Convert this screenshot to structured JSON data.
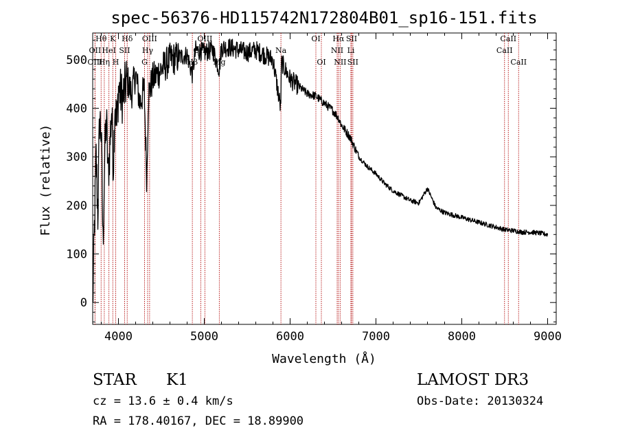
{
  "chart_data": {
    "type": "line",
    "title": "spec-56376-HD115742N172804B01_sp16-151.fits",
    "xlabel": "Wavelength (Å)",
    "ylabel": "Flux (relative)",
    "xlim": [
      3700,
      9100
    ],
    "ylim": [
      -45,
      555
    ],
    "x_ticks": [
      4000,
      5000,
      6000,
      7000,
      8000,
      9000
    ],
    "y_ticks": [
      0,
      100,
      200,
      300,
      400,
      500
    ],
    "colors": {
      "line": "#000000",
      "markers": "#b00000",
      "axes": "#000000"
    },
    "series": [
      {
        "name": "flux",
        "x": [
          3700,
          3720,
          3740,
          3760,
          3780,
          3800,
          3820,
          3840,
          3860,
          3880,
          3900,
          3920,
          3940,
          3960,
          3980,
          4000,
          4050,
          4100,
          4150,
          4200,
          4250,
          4300,
          4330,
          4350,
          4400,
          4450,
          4500,
          4550,
          4600,
          4700,
          4800,
          4860,
          4900,
          5000,
          5100,
          5175,
          5200,
          5300,
          5400,
          5500,
          5600,
          5700,
          5800,
          5890,
          5900,
          6000,
          6100,
          6200,
          6300,
          6400,
          6500,
          6563,
          6600,
          6700,
          6800,
          6900,
          7000,
          7100,
          7200,
          7300,
          7400,
          7500,
          7600,
          7700,
          7800,
          7900,
          8000,
          8100,
          8200,
          8300,
          8400,
          8500,
          8600,
          8700,
          8800,
          8900,
          9000
        ],
        "values": [
          -10,
          150,
          300,
          180,
          380,
          350,
          120,
          300,
          380,
          260,
          320,
          400,
          280,
          420,
          360,
          440,
          420,
          460,
          430,
          470,
          410,
          440,
          250,
          430,
          460,
          470,
          480,
          490,
          500,
          505,
          510,
          470,
          520,
          515,
          520,
          480,
          525,
          525,
          520,
          515,
          520,
          510,
          500,
          400,
          495,
          460,
          445,
          430,
          425,
          410,
          395,
          380,
          365,
          340,
          300,
          280,
          265,
          245,
          230,
          220,
          210,
          205,
          235,
          195,
          185,
          180,
          175,
          170,
          165,
          160,
          155,
          150,
          148,
          145,
          145,
          143,
          140
        ]
      }
    ],
    "lines": [
      {
        "label": "Hθ",
        "x": 3798,
        "row": 0
      },
      {
        "label": "K",
        "x": 3934,
        "row": 0
      },
      {
        "label": "Hδ",
        "x": 4102,
        "row": 0
      },
      {
        "label": "OIII",
        "x": 4363,
        "row": 0
      },
      {
        "label": "OIII",
        "x": 5007,
        "row": 0
      },
      {
        "label": "OI",
        "x": 6300,
        "row": 0
      },
      {
        "label": "Hα",
        "x": 6563,
        "row": 0
      },
      {
        "label": "SII",
        "x": 6716,
        "row": 0
      },
      {
        "label": "CaII",
        "x": 8542,
        "row": 0
      },
      {
        "label": "OII",
        "x": 3727,
        "row": 1
      },
      {
        "label": "HeI",
        "x": 3889,
        "row": 1
      },
      {
        "label": "SII",
        "x": 4072,
        "row": 1
      },
      {
        "label": "Hγ",
        "x": 4340,
        "row": 1
      },
      {
        "label": "OIII",
        "x": 4959,
        "row": 1
      },
      {
        "label": "Na",
        "x": 5893,
        "row": 1
      },
      {
        "label": "NII",
        "x": 6548,
        "row": 1
      },
      {
        "label": "Li",
        "x": 6708,
        "row": 1
      },
      {
        "label": "CaII",
        "x": 8498,
        "row": 1
      },
      {
        "label": "OIII",
        "x": 3727,
        "row": 2
      },
      {
        "label": "Hη",
        "x": 3835,
        "row": 2
      },
      {
        "label": "H",
        "x": 3968,
        "row": 2
      },
      {
        "label": "G",
        "x": 4304,
        "row": 2
      },
      {
        "label": "Hβ",
        "x": 4861,
        "row": 2
      },
      {
        "label": "Mg",
        "x": 5175,
        "row": 2
      },
      {
        "label": "OI",
        "x": 6364,
        "row": 2
      },
      {
        "label": "NII",
        "x": 6583,
        "row": 2
      },
      {
        "label": "SII",
        "x": 6731,
        "row": 2
      },
      {
        "label": "CaII",
        "x": 8662,
        "row": 2
      }
    ]
  },
  "info": {
    "object_class": "STAR",
    "subclass": "K1",
    "survey": "LAMOST DR3",
    "redshift": "cz = 13.6 ± 0.4 km/s",
    "obs_date": "Obs-Date: 20130324",
    "coords": "RA = 178.40167, DEC =  18.89900"
  }
}
